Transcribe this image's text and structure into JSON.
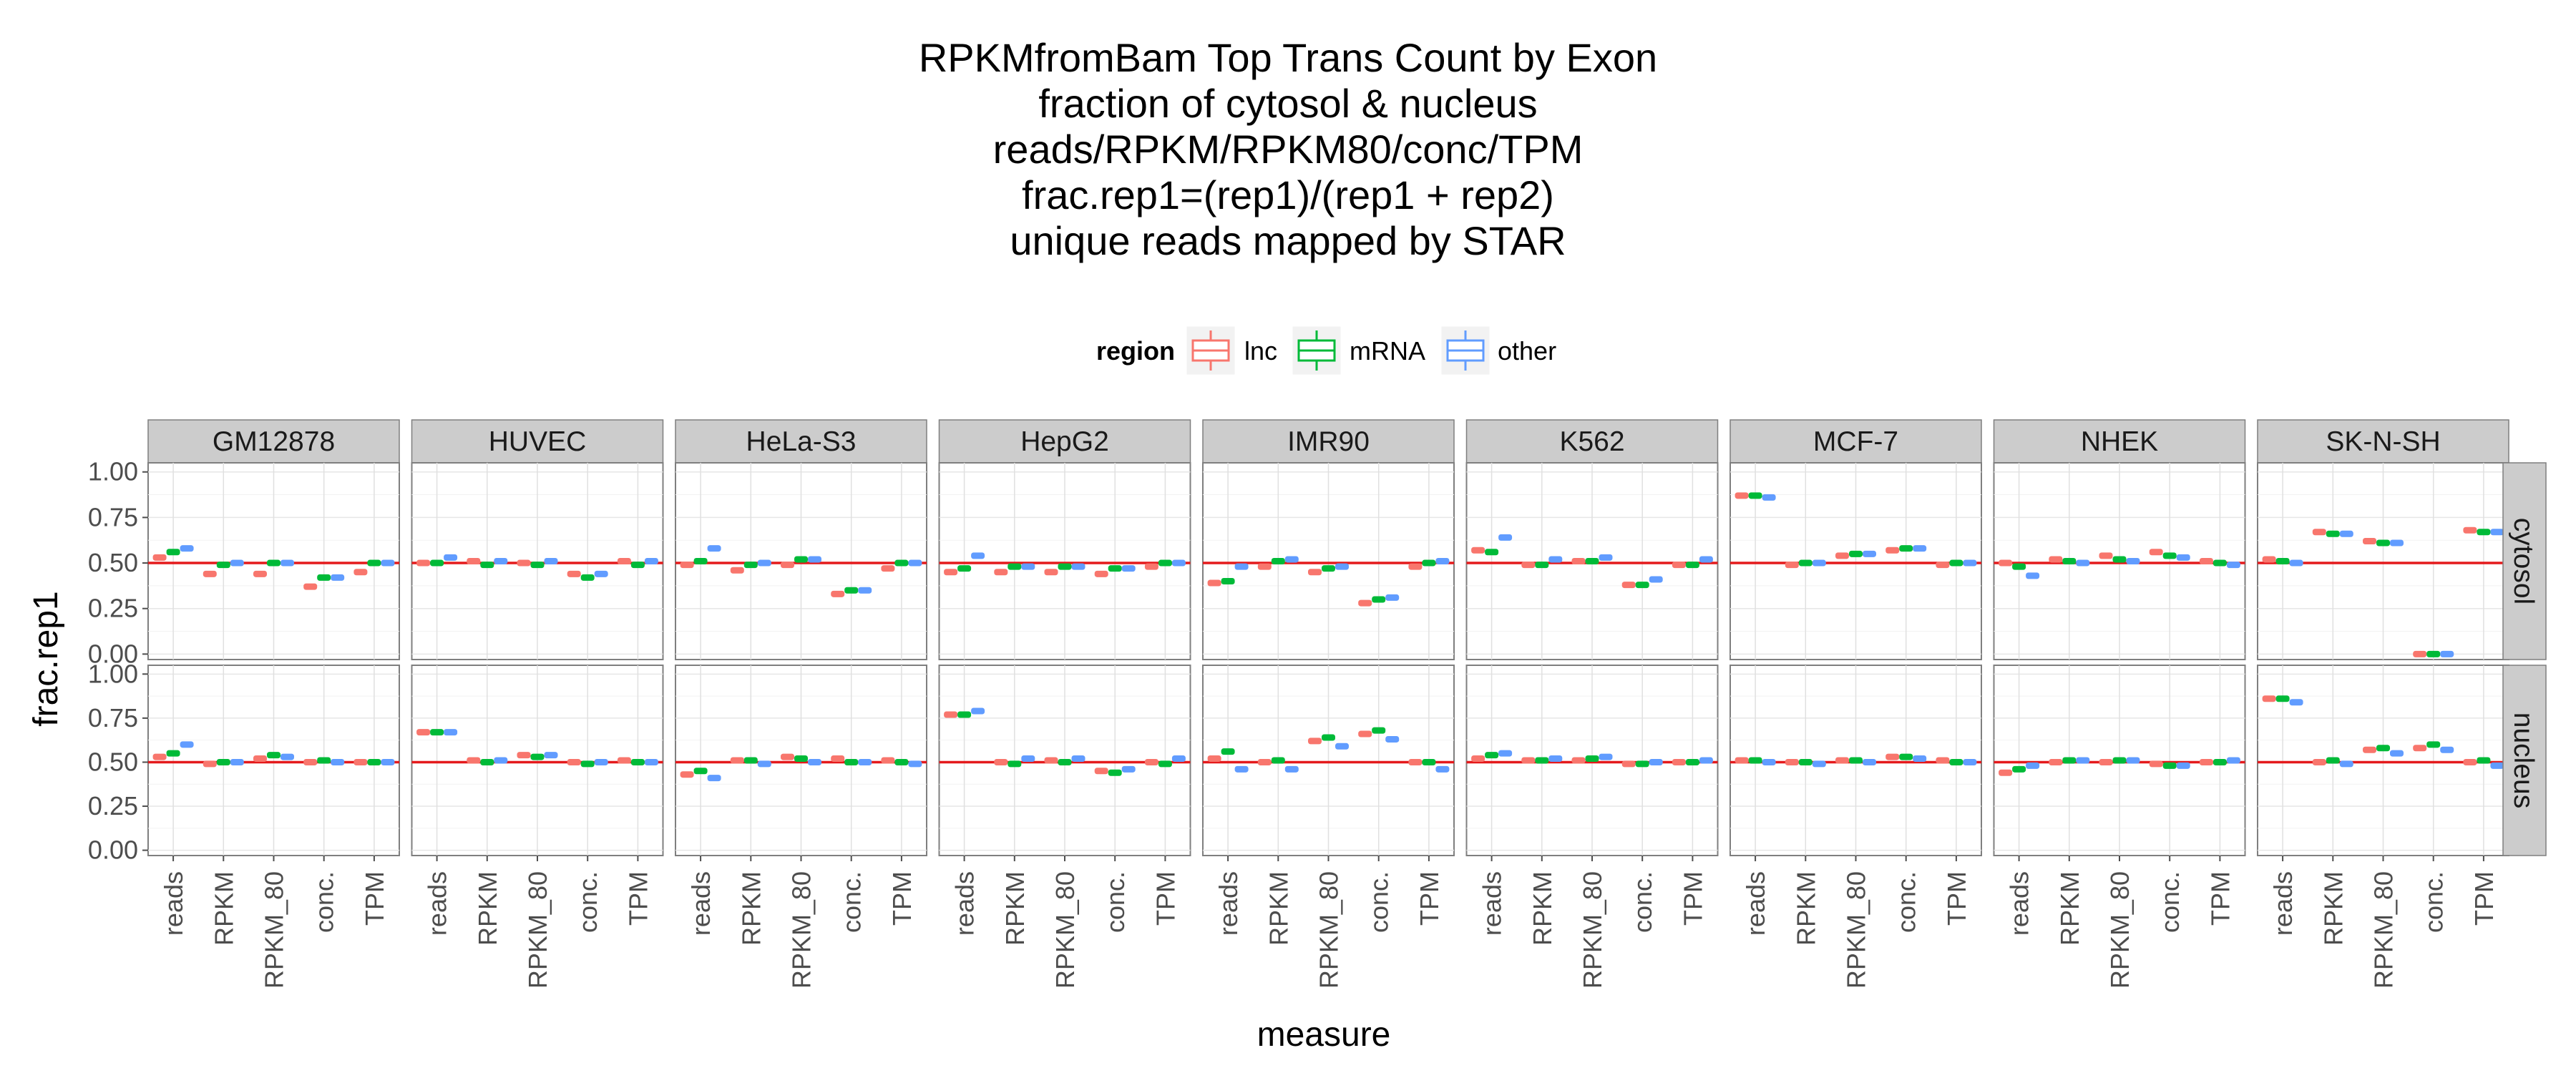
{
  "chart_data": {
    "type": "boxplot",
    "title_lines": [
      "RPKMfromBam Top Trans Count by Exon",
      "fraction of cytosol & nucleus",
      "reads/RPKM/RPKM80/conc/TPM",
      "frac.rep1=(rep1)/(rep1 + rep2)",
      "unique reads mapped by STAR"
    ],
    "xlabel": "measure",
    "ylabel": "frac.rep1",
    "ylim": [
      0,
      1
    ],
    "y_ticks": [
      "0.00",
      "0.25",
      "0.50",
      "0.75",
      "1.00"
    ],
    "reference_line": 0.5,
    "reference_line_color": "#e41a1c",
    "measures": [
      "reads",
      "RPKM",
      "RPKM_80",
      "conc.",
      "TPM"
    ],
    "cell_lines": [
      "GM12878",
      "HUVEC",
      "HeLa-S3",
      "HepG2",
      "IMR90",
      "K562",
      "MCF-7",
      "NHEK",
      "SK-N-SH"
    ],
    "compartments": [
      "cytosol",
      "nucleus"
    ],
    "legend": {
      "title": "region",
      "placement": "top",
      "entries": [
        {
          "name": "lnc",
          "color": "#F8766D"
        },
        {
          "name": "mRNA",
          "color": "#00BA38"
        },
        {
          "name": "other",
          "color": "#619CFF"
        }
      ]
    },
    "values": {
      "cytosol": {
        "GM12878": [
          [
            0.53,
            0.56,
            0.58
          ],
          [
            0.44,
            0.49,
            0.5
          ],
          [
            0.44,
            0.5,
            0.5
          ],
          [
            0.37,
            0.42,
            0.42
          ],
          [
            0.45,
            0.5,
            0.5
          ]
        ],
        "HUVEC": [
          [
            0.5,
            0.5,
            0.53
          ],
          [
            0.51,
            0.49,
            0.51
          ],
          [
            0.5,
            0.49,
            0.51
          ],
          [
            0.44,
            0.42,
            0.44
          ],
          [
            0.51,
            0.49,
            0.51
          ]
        ],
        "HeLa-S3": [
          [
            0.49,
            0.51,
            0.58
          ],
          [
            0.46,
            0.49,
            0.5
          ],
          [
            0.49,
            0.52,
            0.52
          ],
          [
            0.33,
            0.35,
            0.35
          ],
          [
            0.47,
            0.5,
            0.5
          ]
        ],
        "HepG2": [
          [
            0.45,
            0.47,
            0.54
          ],
          [
            0.45,
            0.48,
            0.48
          ],
          [
            0.45,
            0.48,
            0.48
          ],
          [
            0.44,
            0.47,
            0.47
          ],
          [
            0.48,
            0.5,
            0.5
          ]
        ],
        "IMR90": [
          [
            0.39,
            0.4,
            0.48
          ],
          [
            0.48,
            0.51,
            0.52
          ],
          [
            0.45,
            0.47,
            0.48
          ],
          [
            0.28,
            0.3,
            0.31
          ],
          [
            0.48,
            0.5,
            0.51
          ]
        ],
        "K562": [
          [
            0.57,
            0.56,
            0.64
          ],
          [
            0.49,
            0.49,
            0.52
          ],
          [
            0.51,
            0.51,
            0.53
          ],
          [
            0.38,
            0.38,
            0.41
          ],
          [
            0.49,
            0.49,
            0.52
          ]
        ],
        "MCF-7": [
          [
            0.87,
            0.87,
            0.86
          ],
          [
            0.49,
            0.5,
            0.5
          ],
          [
            0.54,
            0.55,
            0.55
          ],
          [
            0.57,
            0.58,
            0.58
          ],
          [
            0.49,
            0.5,
            0.5
          ]
        ],
        "NHEK": [
          [
            0.5,
            0.48,
            0.43
          ],
          [
            0.52,
            0.51,
            0.5
          ],
          [
            0.54,
            0.52,
            0.51
          ],
          [
            0.56,
            0.54,
            0.53
          ],
          [
            0.51,
            0.5,
            0.49
          ]
        ],
        "SK-N-SH": [
          [
            0.52,
            0.51,
            0.5
          ],
          [
            0.67,
            0.66,
            0.66
          ],
          [
            0.62,
            0.61,
            0.61
          ],
          [
            0.0,
            0.0,
            0.0
          ],
          [
            0.68,
            0.67,
            0.67
          ]
        ]
      },
      "nucleus": {
        "GM12878": [
          [
            0.53,
            0.55,
            0.6
          ],
          [
            0.49,
            0.5,
            0.5
          ],
          [
            0.52,
            0.54,
            0.53
          ],
          [
            0.5,
            0.51,
            0.5
          ],
          [
            0.5,
            0.5,
            0.5
          ]
        ],
        "HUVEC": [
          [
            0.67,
            0.67,
            0.67
          ],
          [
            0.51,
            0.5,
            0.51
          ],
          [
            0.54,
            0.53,
            0.54
          ],
          [
            0.5,
            0.49,
            0.5
          ],
          [
            0.51,
            0.5,
            0.5
          ]
        ],
        "HeLa-S3": [
          [
            0.43,
            0.45,
            0.41
          ],
          [
            0.51,
            0.51,
            0.49
          ],
          [
            0.53,
            0.52,
            0.5
          ],
          [
            0.52,
            0.5,
            0.5
          ],
          [
            0.51,
            0.5,
            0.49
          ]
        ],
        "HepG2": [
          [
            0.77,
            0.77,
            0.79
          ],
          [
            0.5,
            0.49,
            0.52
          ],
          [
            0.51,
            0.5,
            0.52
          ],
          [
            0.45,
            0.44,
            0.46
          ],
          [
            0.5,
            0.49,
            0.52
          ]
        ],
        "IMR90": [
          [
            0.52,
            0.56,
            0.46
          ],
          [
            0.5,
            0.51,
            0.46
          ],
          [
            0.62,
            0.64,
            0.59
          ],
          [
            0.66,
            0.68,
            0.63
          ],
          [
            0.5,
            0.5,
            0.46
          ]
        ],
        "K562": [
          [
            0.52,
            0.54,
            0.55
          ],
          [
            0.51,
            0.51,
            0.52
          ],
          [
            0.51,
            0.52,
            0.53
          ],
          [
            0.49,
            0.49,
            0.5
          ],
          [
            0.5,
            0.5,
            0.51
          ]
        ],
        "MCF-7": [
          [
            0.51,
            0.51,
            0.5
          ],
          [
            0.5,
            0.5,
            0.49
          ],
          [
            0.51,
            0.51,
            0.5
          ],
          [
            0.53,
            0.53,
            0.52
          ],
          [
            0.51,
            0.5,
            0.5
          ]
        ],
        "NHEK": [
          [
            0.44,
            0.46,
            0.48
          ],
          [
            0.5,
            0.51,
            0.51
          ],
          [
            0.5,
            0.51,
            0.51
          ],
          [
            0.49,
            0.48,
            0.48
          ],
          [
            0.5,
            0.5,
            0.51
          ]
        ],
        "SK-N-SH": [
          [
            0.86,
            0.86,
            0.84
          ],
          [
            0.5,
            0.51,
            0.49
          ],
          [
            0.57,
            0.58,
            0.55
          ],
          [
            0.58,
            0.6,
            0.57
          ],
          [
            0.5,
            0.51,
            0.48
          ]
        ]
      }
    }
  }
}
